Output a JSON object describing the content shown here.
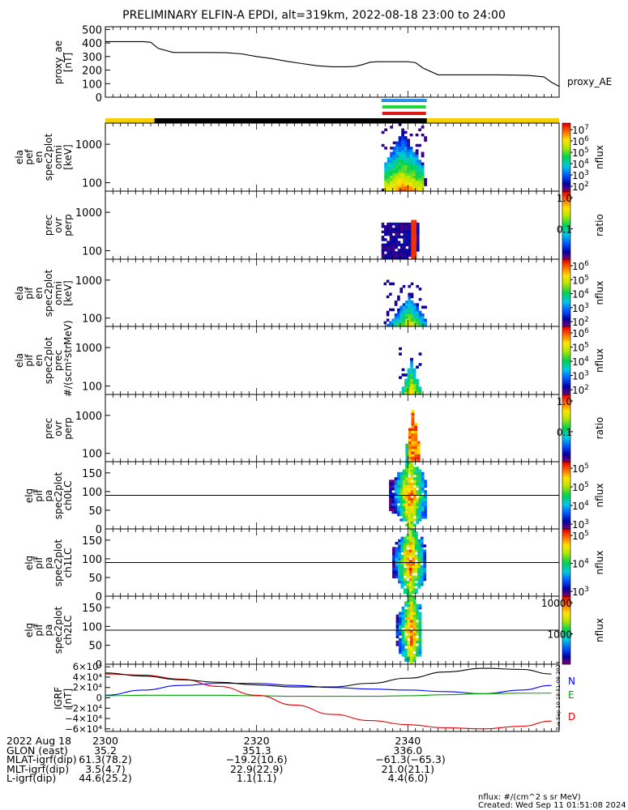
{
  "title": "PRELIMINARY ELFIN-A EPDI, alt=319km, 2022-08-18 23:00 to 24:00",
  "colors": {
    "sector_blue": "#2a8ee8",
    "sector_green": "#1fd83a",
    "sector_red": "#e01818",
    "sci_bar_yellow": "#f5d000",
    "sci_bar_black": "#000000",
    "igrf_n": "#0000ff",
    "igrf_e": "#00a000",
    "igrf_d": "#e00000"
  },
  "chart_data": [
    {
      "type": "line",
      "panel": "proxy_ae",
      "ylabel": "proxy_ae\n[nT]",
      "yticks": [
        "500",
        "400",
        "300",
        "200",
        "100",
        "0"
      ],
      "ylim": [
        0,
        520
      ],
      "series_label": "proxy_AE",
      "x": [
        2300,
        2303,
        2305,
        2306,
        2307,
        2309,
        2310,
        2312,
        2314,
        2316,
        2318,
        2320,
        2322,
        2324,
        2326,
        2328,
        2330,
        2332,
        2333,
        2334,
        2335,
        2336,
        2338,
        2340,
        2341,
        2342,
        2344,
        2346,
        2348,
        2350,
        2352,
        2354,
        2356,
        2358,
        2359,
        2400
      ],
      "values": [
        410,
        410,
        410,
        405,
        360,
        330,
        330,
        330,
        330,
        328,
        320,
        300,
        285,
        265,
        248,
        232,
        225,
        225,
        228,
        240,
        258,
        262,
        262,
        262,
        255,
        215,
        165,
        165,
        165,
        165,
        165,
        163,
        160,
        150,
        110,
        80
      ]
    },
    {
      "type": "heatmap",
      "panel": "elx_pef_en_spec2plot_omni",
      "ylabel": "ela\npef\nen\nspec2plot\nomni\n[keV]",
      "yticks": [
        "1000",
        "100"
      ],
      "y_scale": "log",
      "colorbar": {
        "label": "nflux",
        "ticks": [
          "10^7",
          "10^6",
          "10^5",
          "10^4",
          "10^3",
          "10^2"
        ]
      }
    },
    {
      "type": "heatmap",
      "panel": "pef_prec_ovr_perp",
      "ylabel": "prec\novr\nperp",
      "yticks": [
        "1000",
        "100"
      ],
      "y_scale": "log",
      "colorbar": {
        "label": "ratio",
        "ticks": [
          "1.0",
          "0.1"
        ]
      }
    },
    {
      "type": "heatmap",
      "panel": "elx_pif_en_spec2plot_omni",
      "ylabel": "ela\npif\nen\nspec2plot\nomni\n[keV]",
      "yticks": [
        "1000",
        "100"
      ],
      "y_scale": "log",
      "colorbar": {
        "label": "nflux",
        "ticks": [
          "10^6",
          "10^5",
          "10^4",
          "10^3",
          "10^2"
        ]
      }
    },
    {
      "type": "heatmap",
      "panel": "elx_pif_en_spec2plot_prec",
      "ylabel": "ela\npif\nen\nspec2plot\nprec\n#/(scm²strMeV)",
      "yticks": [
        "1000",
        "100"
      ],
      "y_scale": "log",
      "colorbar": {
        "label": "nflux",
        "ticks": [
          "10^6",
          "10^5",
          "10^4",
          "10^3",
          "10^2"
        ]
      }
    },
    {
      "type": "heatmap",
      "panel": "pif_prec_ovr_perp",
      "ylabel": "prec\novr\nperp",
      "yticks": [
        "1000",
        "100"
      ],
      "y_scale": "log",
      "colorbar": {
        "label": "ratio",
        "ticks": [
          "1.0",
          "0.1"
        ]
      }
    },
    {
      "type": "heatmap",
      "panel": "elx_pif_pa_spec2plot_ch0LC",
      "ylabel": "elg\npif\npa\nspec2plot\nch0LC",
      "yticks": [
        "150",
        "100",
        "50",
        "0"
      ],
      "ylim": [
        0,
        180
      ],
      "colorbar": {
        "label": "nflux",
        "ticks": [
          "10^5",
          "10^5",
          "10^4",
          "10^3"
        ]
      }
    },
    {
      "type": "heatmap",
      "panel": "elx_pif_pa_spec2plot_ch1LC",
      "ylabel": "elg\npif\npa\nspec2plot\nch1LC",
      "yticks": [
        "150",
        "100",
        "50",
        "0"
      ],
      "ylim": [
        0,
        180
      ],
      "colorbar": {
        "label": "nflux",
        "ticks": [
          "10^5",
          "10^4",
          "10^3"
        ]
      }
    },
    {
      "type": "heatmap",
      "panel": "elx_pif_pa_spec2plot_ch2LC",
      "ylabel": "elg\npif\npa\nspec2plot\nch2LC",
      "yticks": [
        "150",
        "100",
        "50",
        "0"
      ],
      "ylim": [
        0,
        180
      ],
      "colorbar": {
        "label": "nflux",
        "ticks": [
          "10000",
          "1000"
        ]
      }
    },
    {
      "type": "line",
      "panel": "igrf",
      "ylabel": "IGRF\n[nT]",
      "yticks": [
        "6×10⁴",
        "4×10⁴",
        "2×10⁴",
        "0",
        "−2×10⁴",
        "−4×10⁴",
        "−6×10⁴"
      ],
      "ylim": [
        -65000,
        65000
      ],
      "x": [
        2300,
        2305,
        2310,
        2315,
        2320,
        2325,
        2330,
        2335,
        2340,
        2345,
        2350,
        2355,
        2359
      ],
      "series": [
        {
          "name": "N",
          "values": [
            5000,
            15000,
            24000,
            28000,
            28000,
            24000,
            20000,
            17000,
            15000,
            12000,
            8000,
            15000,
            24000
          ]
        },
        {
          "name": "E",
          "values": [
            4000,
            5000,
            5000,
            5000,
            4000,
            3000,
            3000,
            3000,
            4000,
            6000,
            8000,
            9000,
            9000
          ]
        },
        {
          "name": "D",
          "values": [
            46000,
            44000,
            36000,
            22000,
            5000,
            -14000,
            -32000,
            -44000,
            -52000,
            -58000,
            -60000,
            -55000,
            -45000
          ]
        },
        {
          "name": "",
          "values": [
            48000,
            42000,
            35000,
            30000,
            25000,
            21000,
            21000,
            28000,
            38000,
            50000,
            57000,
            55000,
            46000
          ]
        }
      ]
    }
  ],
  "xaxis": {
    "tick_labels": [
      "2300",
      "2320",
      "2340"
    ],
    "rows": [
      {
        "label": "2022 Aug 18",
        "values": [
          "2300",
          "2320",
          "2340"
        ]
      },
      {
        "label": "GLON (east)",
        "values": [
          "35.2",
          "351.3",
          "336.0"
        ]
      },
      {
        "label": "MLAT-igrf(dip)",
        "values": [
          "61.3(78.2)",
          "−19.2(10.6)",
          "−61.3(−65.3)"
        ]
      },
      {
        "label": "MLT-igrf(dip)",
        "values": [
          "3.5(4.7)",
          "22.9(22.9)",
          "21.0(21.1)"
        ]
      },
      {
        "label": "L-igrf(dip)",
        "values": [
          "44.6(25.2)",
          "1.1(1.1)",
          "4.4(6.0)"
        ]
      }
    ]
  },
  "footer": {
    "units": "nflux: #/(cm^2 s sr MeV)",
    "created": "Created: Wed Sep 11 01:51:08 2024"
  },
  "side_stamp": "Tue Sep 10 18:51:08 2024"
}
